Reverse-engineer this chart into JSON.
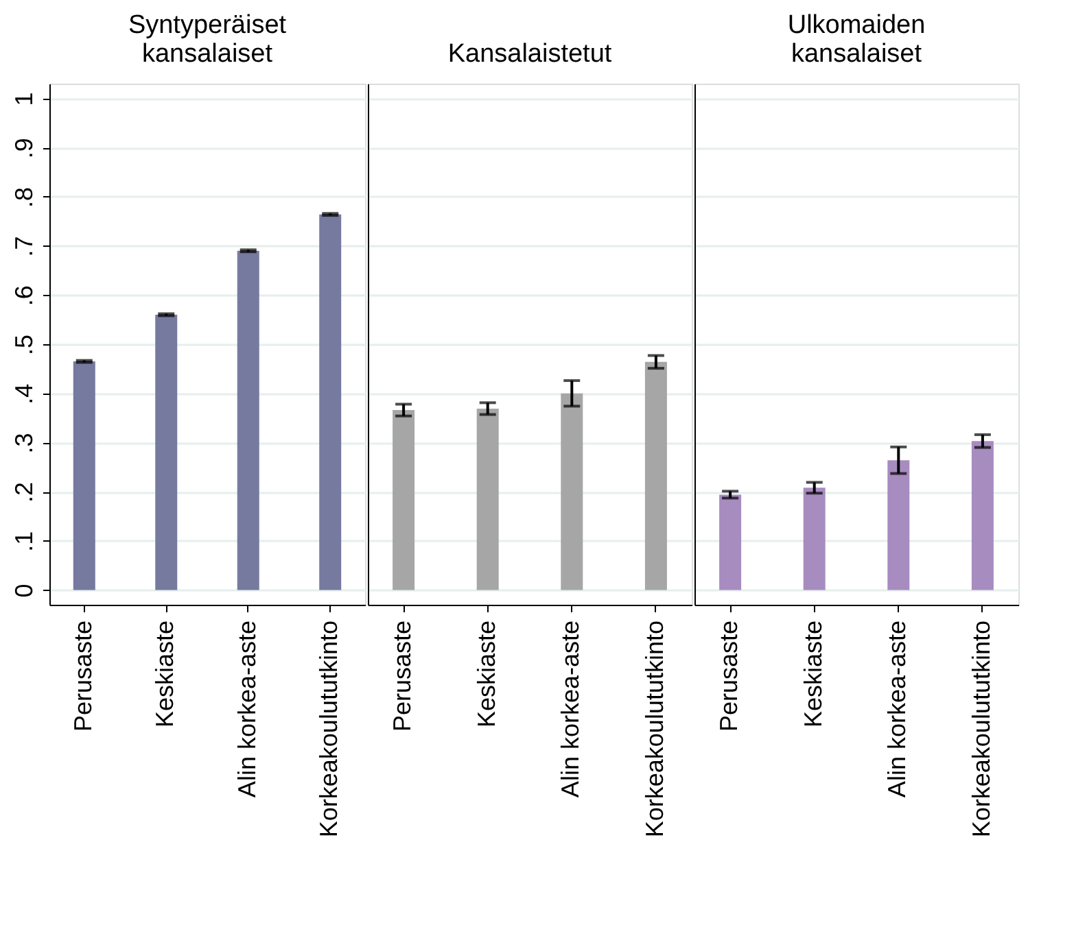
{
  "chart_data": [
    {
      "type": "bar",
      "title": "Syntyperäiset kansalaiset",
      "categories": [
        "Perusaste",
        "Keskiaste",
        "Alin korkea-aste",
        "Korkeakoulututkinto"
      ],
      "values": [
        0.465,
        0.56,
        0.69,
        0.764
      ],
      "errors": [
        0.002,
        0.002,
        0.002,
        0.002
      ],
      "color": "#777a9f",
      "ylim": [
        -0.03,
        1.03
      ],
      "yticks": [
        {
          "value": 0,
          "label": "0"
        },
        {
          "value": 0.1,
          "label": ".1"
        },
        {
          "value": 0.2,
          "label": ".2"
        },
        {
          "value": 0.3,
          "label": ".3"
        },
        {
          "value": 0.4,
          "label": ".4"
        },
        {
          "value": 0.5,
          "label": ".5"
        },
        {
          "value": 0.6,
          "label": ".6"
        },
        {
          "value": 0.7,
          "label": ".7"
        },
        {
          "value": 0.8,
          "label": ".8"
        },
        {
          "value": 0.9,
          "label": ".9"
        },
        {
          "value": 1,
          "label": "1"
        }
      ],
      "grid": "y"
    },
    {
      "type": "bar",
      "title": "Kansalaistetut",
      "categories": [
        "Perusaste",
        "Keskiaste",
        "Alin korkea-aste",
        "Korkeakoulututkinto"
      ],
      "values": [
        0.366,
        0.369,
        0.4,
        0.464
      ],
      "errors": [
        0.012,
        0.012,
        0.026,
        0.013
      ],
      "color": "#a6a6a6",
      "ylim": [
        -0.03,
        1.03
      ],
      "yticks": [
        0,
        0.1,
        0.2,
        0.3,
        0.4,
        0.5,
        0.6,
        0.7,
        0.8,
        0.9,
        1
      ],
      "grid": "y",
      "tick_labels": "x"
    },
    {
      "type": "bar",
      "title": "Ulkomaiden kansalaiset",
      "categories": [
        "Perusaste",
        "Keskiaste",
        "Alin korkea-aste",
        "Korkeakoulututkinto"
      ],
      "values": [
        0.194,
        0.208,
        0.264,
        0.303
      ],
      "errors": [
        0.007,
        0.011,
        0.027,
        0.013
      ],
      "color": "#a78cc0",
      "ylim": [
        -0.03,
        1.03
      ],
      "yticks": [
        0,
        0.1,
        0.2,
        0.3,
        0.4,
        0.5,
        0.6,
        0.7,
        0.8,
        0.9,
        1
      ],
      "grid": "y",
      "tick_labels": "x"
    }
  ]
}
